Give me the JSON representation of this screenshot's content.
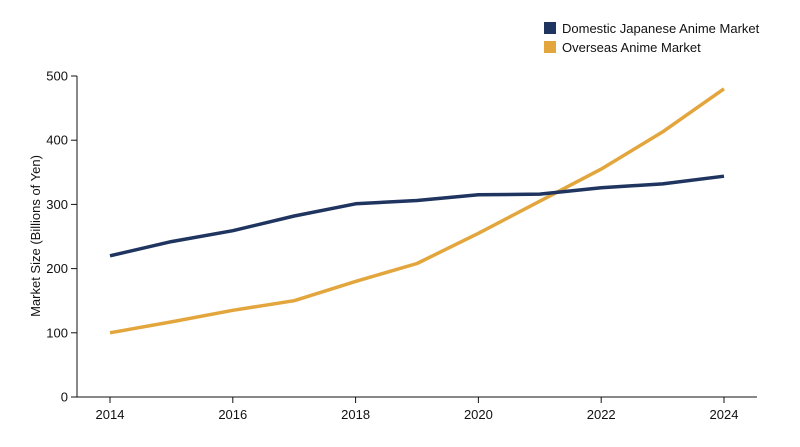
{
  "chart_data": {
    "type": "line",
    "title": "",
    "xlabel": "",
    "ylabel": "Market Size (Billions of Yen)",
    "x": [
      2014,
      2015,
      2016,
      2017,
      2018,
      2019,
      2020,
      2021,
      2022,
      2023,
      2024
    ],
    "xlim": [
      2014,
      2024
    ],
    "ylim": [
      0,
      500
    ],
    "x_ticks": [
      "2014",
      "2016",
      "2018",
      "2020",
      "2022",
      "2024"
    ],
    "y_ticks": [
      "0",
      "100",
      "200",
      "300",
      "400",
      "500"
    ],
    "grid": false,
    "legend_position": "top-right",
    "series": [
      {
        "name": "Domestic Japanese Anime Market",
        "color": "#1f3560",
        "values": [
          220,
          242,
          259,
          282,
          301,
          306,
          315,
          316,
          326,
          332,
          344
        ]
      },
      {
        "name": "Overseas Anime Market",
        "color": "#e3a63d",
        "values": [
          100,
          117,
          135,
          150,
          180,
          208,
          255,
          305,
          355,
          413,
          480
        ]
      }
    ]
  }
}
